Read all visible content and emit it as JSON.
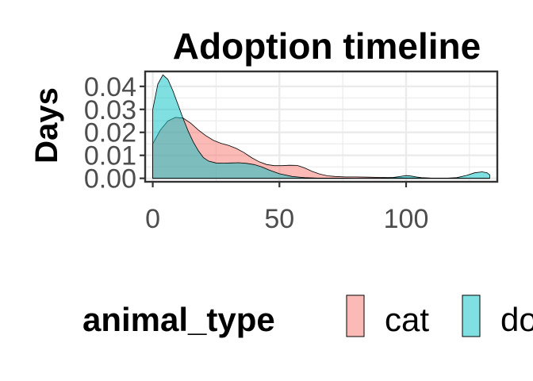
{
  "chart_data": {
    "type": "area",
    "subtype": "density",
    "title": "Adoption timeline",
    "xlabel": "",
    "ylabel": "Days",
    "xlim": [
      -3,
      136
    ],
    "ylim": [
      -0.0015,
      0.0465
    ],
    "x_ticks": [
      0,
      50,
      100
    ],
    "x_tick_labels": [
      "0",
      "50",
      "100"
    ],
    "y_ticks": [
      0.0,
      0.01,
      0.02,
      0.03,
      0.04
    ],
    "y_tick_labels": [
      "0.00",
      "0.01",
      "0.02",
      "0.03",
      "0.04"
    ],
    "grid": true,
    "legend": {
      "title": "animal_type",
      "position": "bottom"
    },
    "series": [
      {
        "name": "cat",
        "color": "#F8766D",
        "x": [
          0,
          3,
          6,
          9,
          12,
          15,
          18,
          21,
          24,
          27,
          30,
          33,
          36,
          39,
          42,
          45,
          48,
          51,
          54,
          57,
          60,
          63,
          66,
          69,
          72,
          76,
          80,
          85,
          90,
          95,
          100,
          105,
          110,
          115,
          120,
          125,
          130,
          133
        ],
        "y": [
          0.015,
          0.021,
          0.025,
          0.0265,
          0.0262,
          0.024,
          0.021,
          0.0185,
          0.0165,
          0.0152,
          0.0143,
          0.013,
          0.0112,
          0.009,
          0.0072,
          0.006,
          0.0055,
          0.0055,
          0.0057,
          0.0056,
          0.0045,
          0.003,
          0.0018,
          0.0011,
          0.0008,
          0.0006,
          0.0006,
          0.0005,
          0.0004,
          0.0003,
          0.0002,
          0.0002,
          0.0001,
          0.0001,
          0.0001,
          0.0,
          0.0,
          0.0
        ]
      },
      {
        "name": "dog",
        "color": "#00BFC4",
        "x": [
          0,
          2,
          4,
          6,
          8,
          10,
          12,
          14,
          16,
          18,
          20,
          22,
          25,
          28,
          31,
          34,
          37,
          40,
          43,
          46,
          50,
          55,
          60,
          65,
          70,
          75,
          80,
          85,
          90,
          95,
          98,
          100,
          102,
          104,
          106,
          110,
          115,
          120,
          124,
          127,
          130,
          132,
          133
        ],
        "y": [
          0.03,
          0.041,
          0.045,
          0.043,
          0.038,
          0.032,
          0.026,
          0.0205,
          0.0158,
          0.012,
          0.009,
          0.0075,
          0.0067,
          0.0066,
          0.0067,
          0.0068,
          0.0065,
          0.006,
          0.005,
          0.0036,
          0.002,
          0.0008,
          0.0003,
          0.0001,
          0.0001,
          0.0001,
          0.0,
          0.0,
          0.0001,
          0.0004,
          0.0009,
          0.0012,
          0.001,
          0.0006,
          0.0003,
          0.0001,
          0.0,
          0.0003,
          0.0013,
          0.0024,
          0.0028,
          0.0024,
          0.0015
        ]
      }
    ]
  }
}
